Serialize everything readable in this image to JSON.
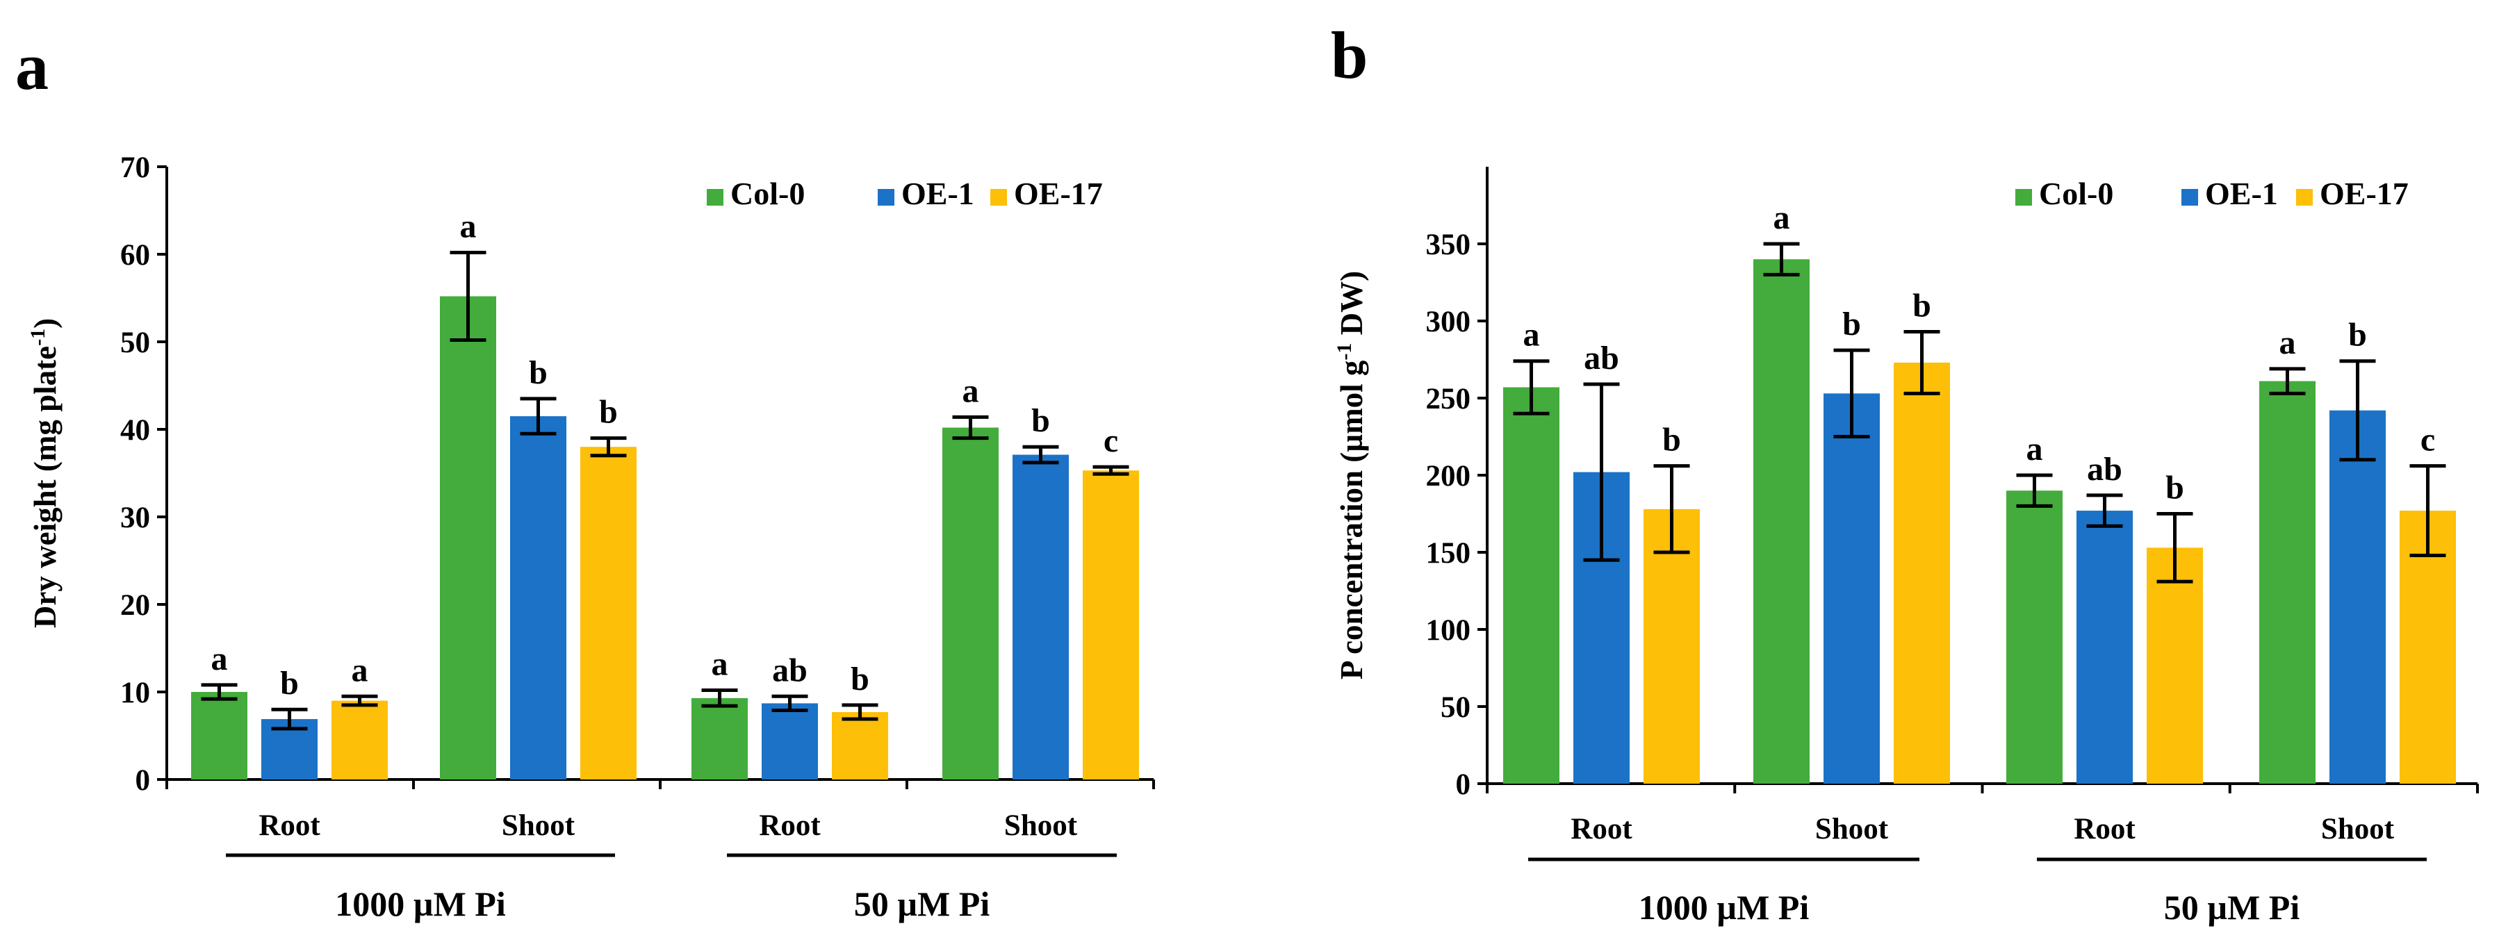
{
  "figure": {
    "panels": [
      "a",
      "b"
    ],
    "colors": {
      "Col-0": "#43ac3c",
      "OE-1": "#1b72c7",
      "OE-17": "#fdbf08"
    }
  },
  "chart_data": [
    {
      "panel": "a",
      "type": "bar",
      "title": "",
      "xlabel": "",
      "ylabel_main": "Dry weight (mg plate",
      "ylabel_sup": "-1",
      "ylabel_tail": ")",
      "ylim": [
        0,
        70
      ],
      "yticks": [
        0,
        10,
        20,
        30,
        40,
        50,
        60,
        70
      ],
      "legend": [
        "Col-0",
        "OE-1",
        "OE-17"
      ],
      "legend_position": "top-right",
      "categories": [
        "Root",
        "Shoot",
        "Root",
        "Shoot"
      ],
      "groups": [
        {
          "label": "1000 µM Pi",
          "categories": [
            0,
            1
          ]
        },
        {
          "label": "50 µM Pi",
          "categories": [
            2,
            3
          ]
        }
      ],
      "series": [
        {
          "name": "Col-0",
          "values": [
            10.0,
            55.2,
            9.3,
            40.2
          ],
          "errors": [
            0.8,
            5.0,
            0.9,
            1.2
          ],
          "letters": [
            "a",
            "a",
            "a",
            "a"
          ]
        },
        {
          "name": "OE-1",
          "values": [
            6.9,
            41.5,
            8.7,
            37.1
          ],
          "errors": [
            1.1,
            2.0,
            0.8,
            0.9
          ],
          "letters": [
            "b",
            "b",
            "ab",
            "b"
          ]
        },
        {
          "name": "OE-17",
          "values": [
            9.0,
            38.0,
            7.7,
            35.3
          ],
          "errors": [
            0.5,
            1.0,
            0.8,
            0.4
          ],
          "letters": [
            "a",
            "b",
            "b",
            "c"
          ]
        }
      ]
    },
    {
      "panel": "b",
      "type": "bar",
      "title": "",
      "xlabel": "",
      "ylabel_main": "P concentration (µmol g",
      "ylabel_sup": "-1",
      "ylabel_tail": " DW)",
      "ylim": [
        0,
        400
      ],
      "yticks": [
        0,
        50,
        100,
        150,
        200,
        250,
        300,
        350
      ],
      "legend": [
        "Col-0",
        "OE-1",
        "OE-17"
      ],
      "legend_position": "top-right",
      "categories": [
        "Root",
        "Shoot",
        "Root",
        "Shoot"
      ],
      "groups": [
        {
          "label": "1000 µM Pi",
          "categories": [
            0,
            1
          ]
        },
        {
          "label": "50 µM Pi",
          "categories": [
            2,
            3
          ]
        }
      ],
      "series": [
        {
          "name": "Col-0",
          "values": [
            257,
            340,
            190,
            261
          ],
          "errors": [
            17,
            10,
            10,
            8
          ],
          "letters": [
            "a",
            "a",
            "a",
            "a"
          ]
        },
        {
          "name": "OE-1",
          "values": [
            202,
            253,
            177,
            242
          ],
          "errors": [
            57,
            28,
            10,
            32
          ],
          "letters": [
            "ab",
            "b",
            "ab",
            "b"
          ]
        },
        {
          "name": "OE-17",
          "values": [
            178,
            273,
            153,
            177
          ],
          "errors": [
            28,
            20,
            22,
            29
          ],
          "letters": [
            "b",
            "b",
            "b",
            "c"
          ]
        }
      ]
    }
  ]
}
